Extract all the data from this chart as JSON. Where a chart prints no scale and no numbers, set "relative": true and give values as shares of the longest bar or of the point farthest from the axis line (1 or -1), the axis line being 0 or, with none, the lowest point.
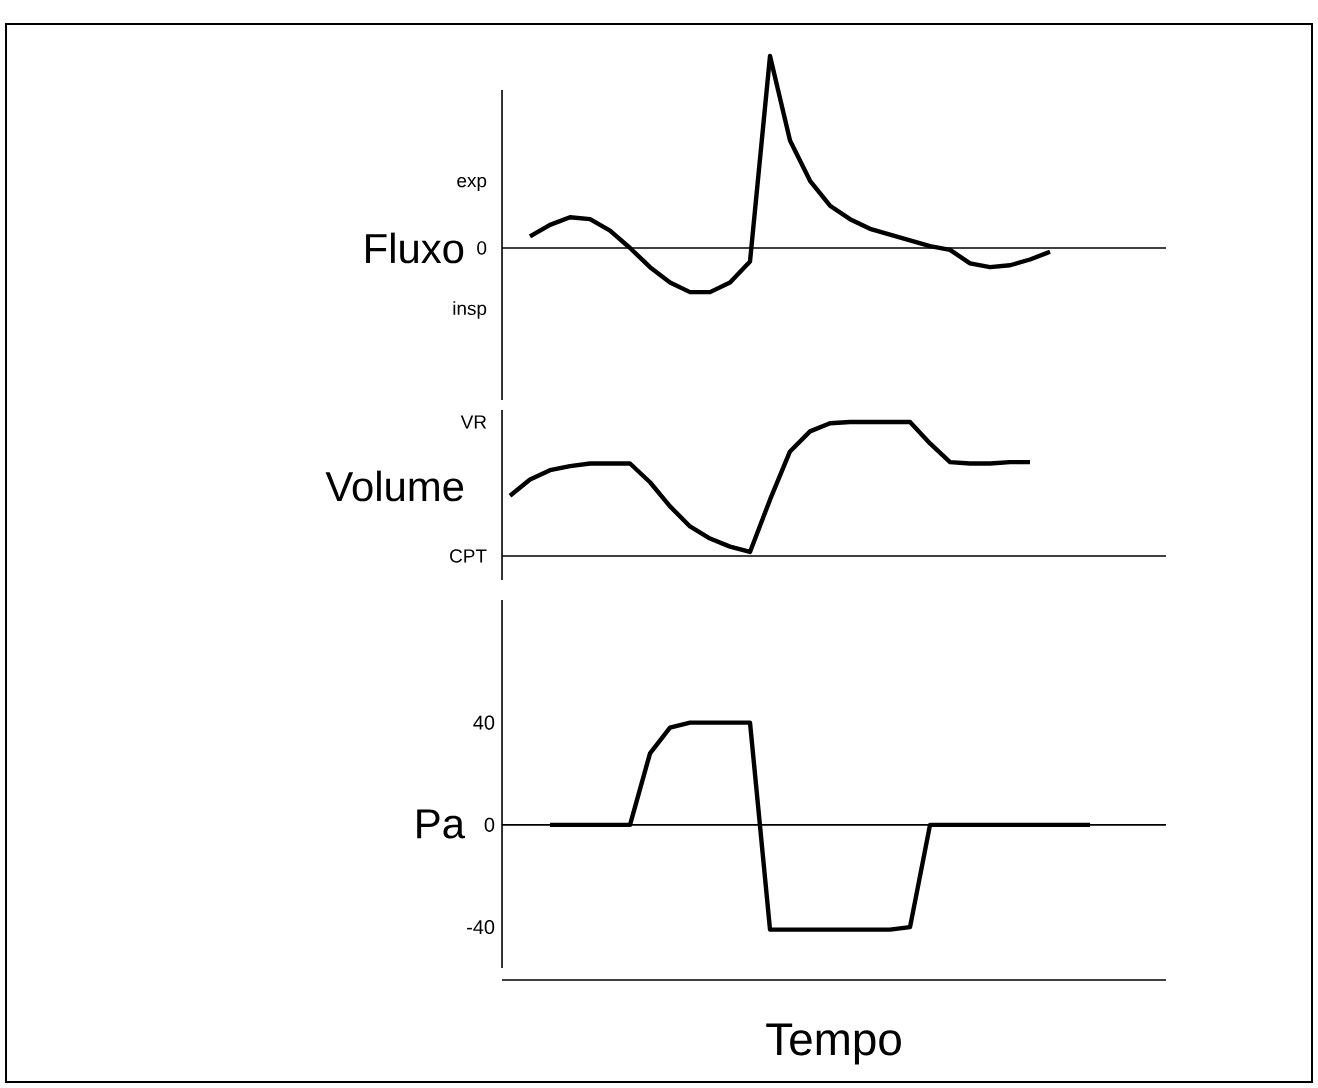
{
  "chart_data": [
    {
      "type": "line",
      "ylabel": "Fluxo",
      "relative": true,
      "annotations": [
        "exp",
        "0",
        "insp"
      ],
      "categories": [
        null,
        null,
        null,
        null,
        null,
        null,
        null,
        null,
        null,
        null,
        null,
        null,
        null,
        null,
        null,
        null,
        null,
        null,
        null,
        null,
        null,
        null,
        null,
        null,
        null,
        null,
        null,
        null,
        null,
        null,
        null,
        null,
        null,
        null
      ],
      "series": [
        {
          "color": "#000000",
          "values": [
            null,
            0.06,
            0.12,
            0.16,
            0.15,
            0.09,
            0.0,
            -0.1,
            -0.18,
            -0.23,
            -0.23,
            -0.18,
            -0.07,
            1.0,
            0.56,
            0.35,
            0.22,
            0.15,
            0.1,
            0.07,
            0.04,
            0.01,
            -0.01,
            -0.08,
            -0.1,
            -0.09,
            -0.06,
            -0.02,
            null,
            null,
            null,
            null,
            null,
            null
          ]
        }
      ]
    },
    {
      "type": "line",
      "ylabel": "Volume",
      "relative": true,
      "annotations": [
        "VR",
        "CPT"
      ],
      "categories": [
        null,
        null,
        null,
        null,
        null,
        null,
        null,
        null,
        null,
        null,
        null,
        null,
        null,
        null,
        null,
        null,
        null,
        null,
        null,
        null,
        null,
        null,
        null,
        null,
        null,
        null,
        null,
        null,
        null,
        null,
        null,
        null,
        null,
        null
      ],
      "series": [
        {
          "color": "#000000",
          "values": [
            0.45,
            0.57,
            0.64,
            0.67,
            0.69,
            0.69,
            0.69,
            0.55,
            0.37,
            0.22,
            0.13,
            0.07,
            0.03,
            0.42,
            0.78,
            0.93,
            0.99,
            1.0,
            1.0,
            1.0,
            1.0,
            0.84,
            0.7,
            0.69,
            0.69,
            0.7,
            0.7,
            null,
            null,
            null,
            null,
            null,
            null,
            null
          ]
        }
      ]
    },
    {
      "type": "line",
      "ylabel": "Pa",
      "xlabel": "Tempo",
      "ylim": [
        -56,
        88
      ],
      "yticks": [
        -40,
        0,
        40
      ],
      "ref_lines": [
        {
          "axis": "y",
          "value": 0
        }
      ],
      "categories": [
        null,
        null,
        null,
        null,
        null,
        null,
        null,
        null,
        null,
        null,
        null,
        null,
        null,
        null,
        null,
        null,
        null,
        null,
        null,
        null,
        null,
        null,
        null,
        null,
        null,
        null,
        null,
        null,
        null,
        null,
        null,
        null,
        null,
        null
      ],
      "series": [
        {
          "color": "#000000",
          "values": [
            null,
            null,
            0,
            0,
            0,
            0,
            0,
            28,
            38,
            40,
            40,
            40,
            40,
            -41,
            -41,
            -41,
            -41,
            -41,
            -41,
            -41,
            -40,
            0,
            0,
            0,
            0,
            0,
            0,
            0,
            0,
            0,
            null,
            null,
            null,
            null
          ]
        }
      ]
    }
  ]
}
